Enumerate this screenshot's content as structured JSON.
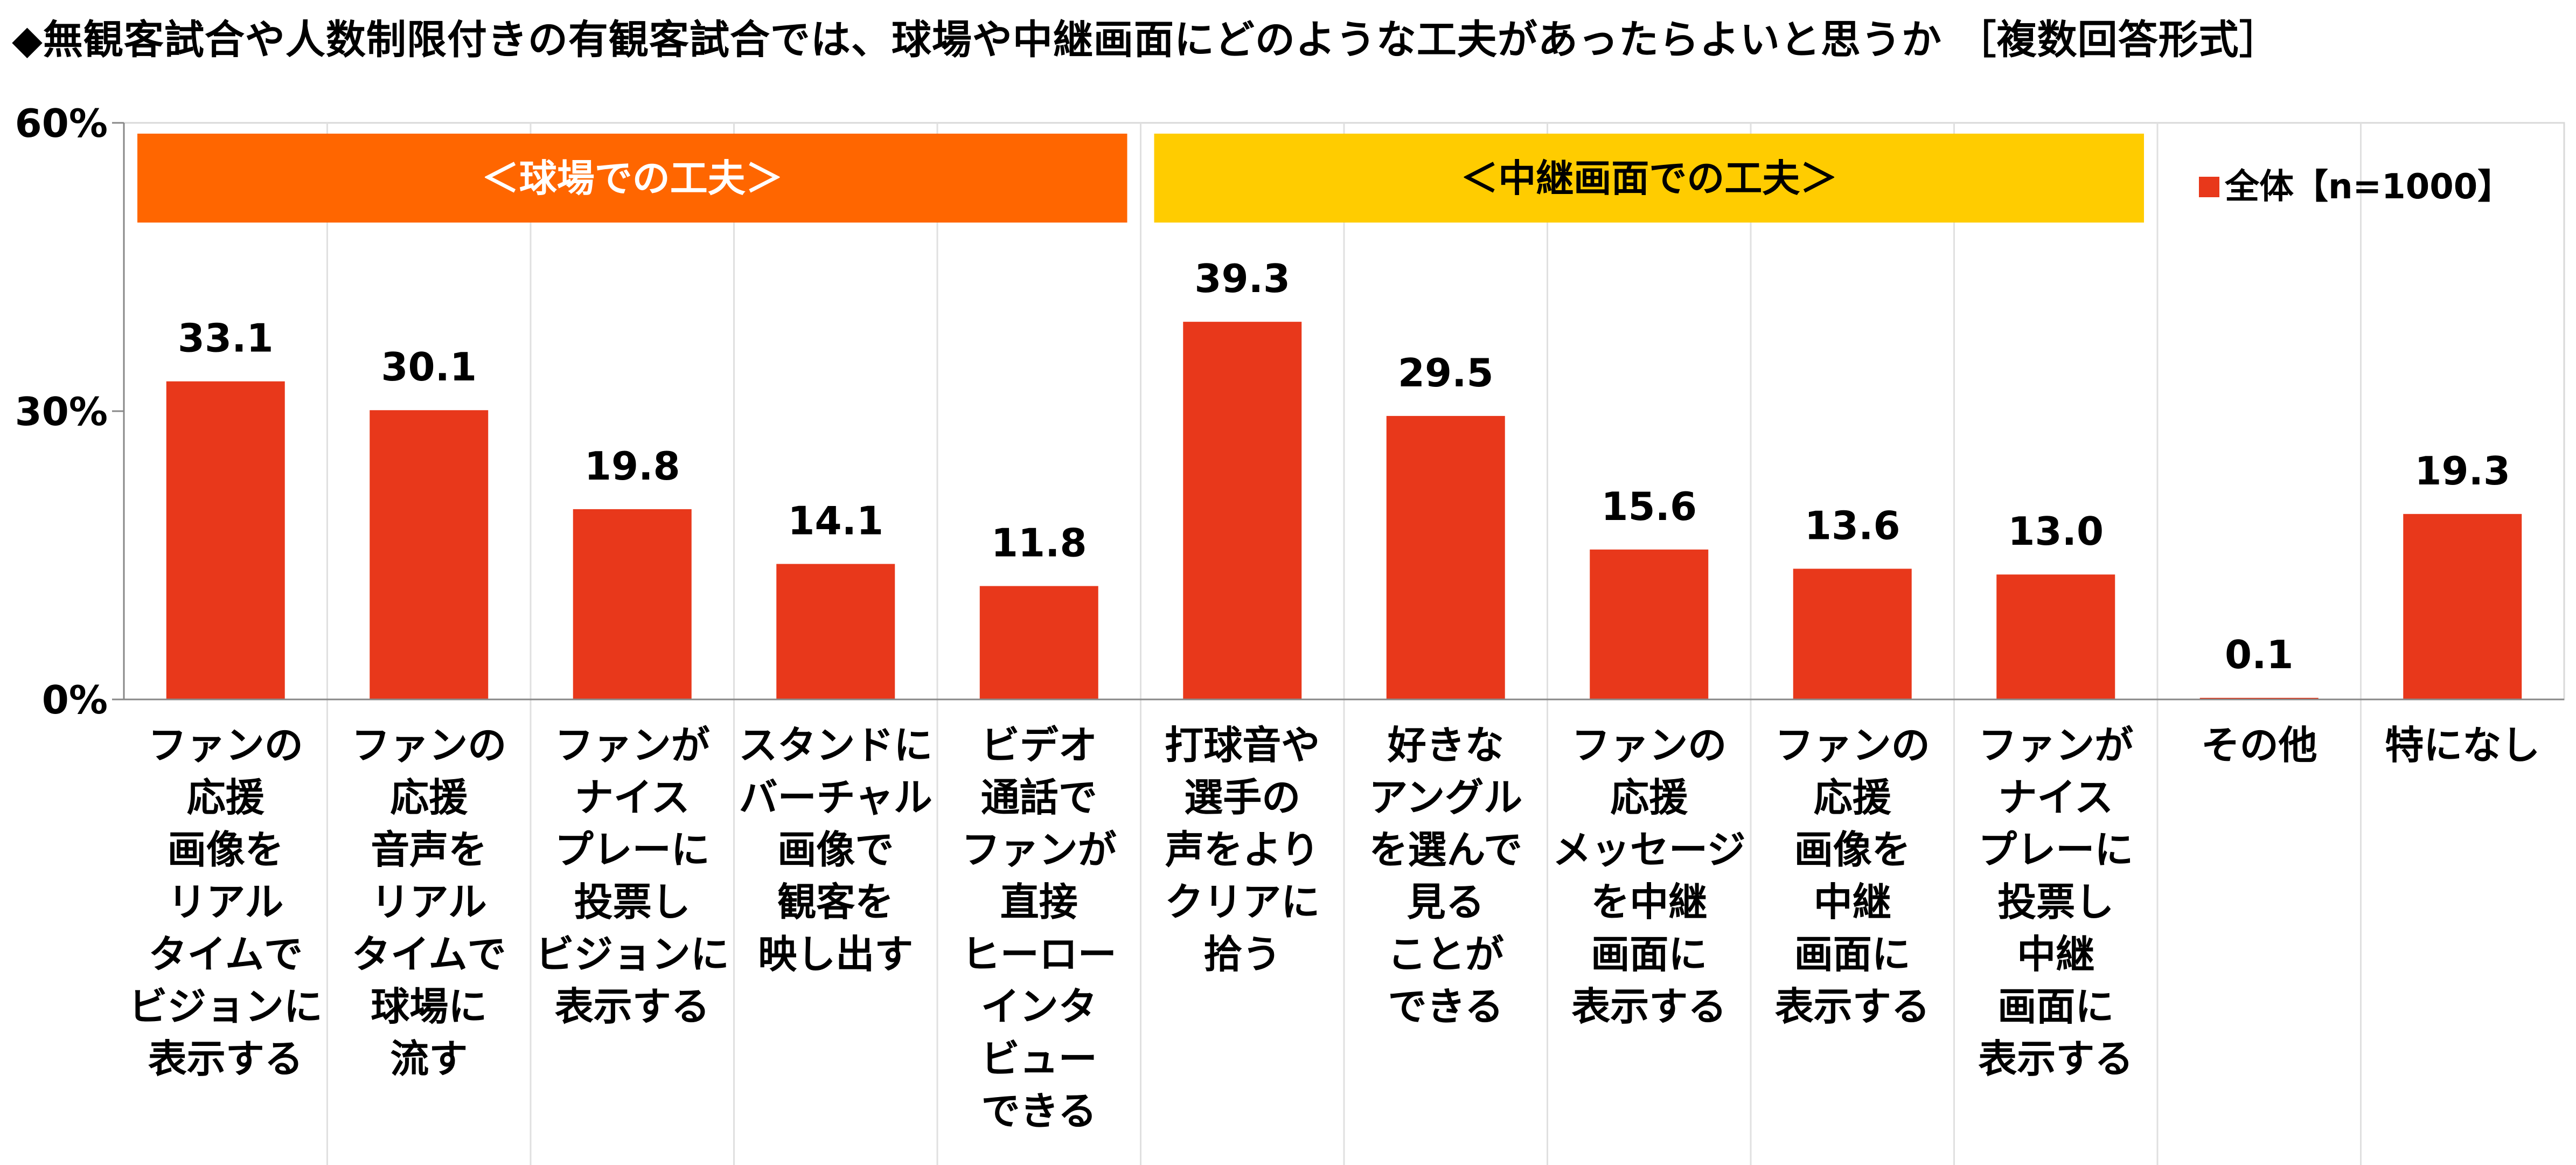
{
  "title": "◆無観客試合や人数制限付きの有観客試合では、球場や中継画面にどのような工夫があったらよいと思うか ［複数回答形式］",
  "chart_data": {
    "type": "bar",
    "title": "◆無観客試合や人数制限付きの有観客試合では、球場や中継画面にどのような工夫があったらよいと思うか ［複数回答形式］",
    "xlabel": "",
    "ylabel": "",
    "ylim": [
      0,
      60
    ],
    "yticks": [
      0,
      30,
      60
    ],
    "ytick_labels": [
      "0%",
      "30%",
      "60%"
    ],
    "grid": true,
    "legend_position": "top-right",
    "categories": [
      "ファンの\n応援\n画像を\nリアル\nタイムで\nビジョンに\n表示する",
      "ファンの\n応援\n音声を\nリアル\nタイムで\n球場に\n流す",
      "ファンが\nナイス\nプレーに\n投票し\nビジョンに\n表示する",
      "スタンドに\nバーチャル\n画像で\n観客を\n映し出す",
      "ビデオ\n通話で\nファンが\n直接\nヒーロー\nインタ\nビュー\nできる",
      "打球音や\n選手の\n声をより\nクリアに\n拾う",
      "好きな\nアングル\nを選んで\n見る\nことが\nできる",
      "ファンの\n応援\nメッセージ\nを中継\n画面に\n表示する",
      "ファンの\n応援\n画像を\n中継\n画面に\n表示する",
      "ファンが\nナイス\nプレーに\n投票し\n中継\n画面に\n表示する",
      "その他",
      "特になし"
    ],
    "series": [
      {
        "name": "全体【n=1000】",
        "color": "#e8381b",
        "values": [
          33.1,
          30.1,
          19.8,
          14.1,
          11.8,
          39.3,
          29.5,
          15.6,
          13.6,
          13.0,
          0.1,
          19.3
        ],
        "value_labels": [
          "33.1",
          "30.1",
          "19.8",
          "14.1",
          "11.8",
          "39.3",
          "29.5",
          "15.6",
          "13.6",
          "13.0",
          "0.1",
          "19.3"
        ]
      }
    ],
    "banners": [
      {
        "label": "＜球場での工夫＞",
        "color": "#ff6600",
        "start": 0,
        "end": 4
      },
      {
        "label": "＜中継画面での工夫＞",
        "color": "#ffcc00",
        "start": 5,
        "end": 9
      }
    ]
  }
}
